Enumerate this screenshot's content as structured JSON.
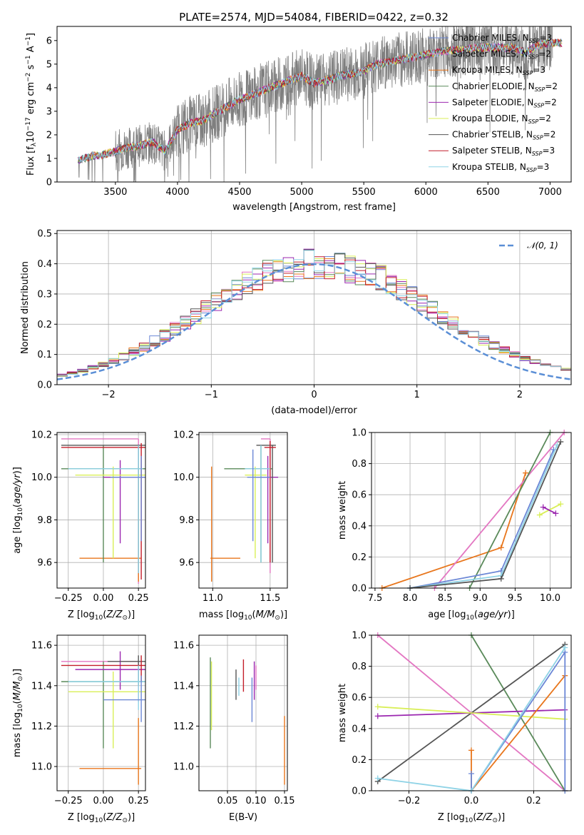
{
  "figure": {
    "title": "PLATE=2574, MJD=54084, FIBERID=0422, z=0.32"
  },
  "colors": {
    "Chabrier MILES": "#6b87d6",
    "Salpeter MILES": "#e377c2",
    "Kroupa MILES": "#e8761c",
    "Chabrier ELODIE": "#5a8a5a",
    "Salpeter ELODIE": "#9b27b0",
    "Kroupa ELODIE": "#d9ef58",
    "Chabrier STELIB": "#555555",
    "Salpeter STELIB": "#c41e2a",
    "Kroupa STELIB": "#8fd3e6",
    "gaussian": "#5b8fd6"
  },
  "chart_data": [
    {
      "id": "spectrum",
      "type": "line",
      "title": "PLATE=2574, MJD=54084, FIBERID=0422, z=0.32",
      "xlabel": "wavelength [Angstrom, rest frame]",
      "ylabel": "Flux [f_λ 10^-17 erg cm^-2 s^-1 A^-1]",
      "xlim": [
        3030,
        7170
      ],
      "ylim": [
        0,
        6.6
      ],
      "xticks": [
        3500,
        4000,
        4500,
        5000,
        5500,
        6000,
        6500,
        7000
      ],
      "yticks": [
        0,
        1,
        2,
        3,
        4,
        5,
        6
      ],
      "grid": false,
      "legend_position": "upper-right",
      "legend": [
        {
          "label": "Chabrier MILES, N_SSP=3",
          "main": "Chabrier MILES, N",
          "sub": "SSP",
          "tail": "=3",
          "color": "#6b87d6"
        },
        {
          "label": "Salpeter MILES, N_SSP=2",
          "main": "Salpeter MILES, N",
          "sub": "SSP",
          "tail": "=2",
          "color": "#e377c2"
        },
        {
          "label": "Kroupa MILES, N_SSP=3",
          "main": "Kroupa MILES, N",
          "sub": "SSP",
          "tail": "=3",
          "color": "#e8761c"
        },
        {
          "label": "Chabrier ELODIE, N_SSP=2",
          "main": "Chabrier ELODIE, N",
          "sub": "SSP",
          "tail": "=2",
          "color": "#5a8a5a"
        },
        {
          "label": "Salpeter ELODIE, N_SSP=2",
          "main": "Salpeter ELODIE, N",
          "sub": "SSP",
          "tail": "=2",
          "color": "#9b27b0"
        },
        {
          "label": "Kroupa ELODIE, N_SSP=2",
          "main": "Kroupa ELODIE, N",
          "sub": "SSP",
          "tail": "=2",
          "color": "#d9ef58"
        },
        {
          "label": "Chabrier STELIB, N_SSP=2",
          "main": "Chabrier STELIB, N",
          "sub": "SSP",
          "tail": "=2",
          "color": "#555555"
        },
        {
          "label": "Salpeter STELIB, N_SSP=3",
          "main": "Salpeter STELIB, N",
          "sub": "SSP",
          "tail": "=3",
          "color": "#c41e2a"
        },
        {
          "label": "Kroupa STELIB, N_SSP=3",
          "main": "Kroupa STELIB, N",
          "sub": "SSP",
          "tail": "=3",
          "color": "#8fd3e6"
        }
      ],
      "data_continuum": {
        "x": [
          3200,
          3300,
          3400,
          3500,
          3600,
          3700,
          3800,
          3900,
          4000,
          4100,
          4200,
          4300,
          4400,
          4500,
          4600,
          4700,
          4800,
          4900,
          5000,
          5100,
          5200,
          5300,
          5400,
          5500,
          5600,
          5700,
          5800,
          5900,
          6000,
          6100,
          6200,
          6300,
          6400,
          6500,
          6600,
          6700,
          6800,
          6900,
          7000,
          7100
        ],
        "y": [
          0.9,
          1.1,
          1.15,
          1.3,
          1.45,
          1.55,
          1.7,
          1.3,
          2.2,
          2.5,
          2.6,
          2.9,
          3.2,
          3.5,
          3.7,
          3.9,
          4.1,
          4.3,
          4.5,
          4.2,
          4.3,
          4.5,
          4.6,
          4.7,
          5.0,
          5.1,
          5.2,
          5.3,
          5.4,
          5.5,
          5.6,
          5.6,
          5.7,
          5.7,
          5.7,
          5.7,
          5.5,
          5.8,
          5.9,
          5.9
        ]
      }
    },
    {
      "id": "residuals",
      "type": "line",
      "xlabel": "(data-model)/error",
      "ylabel": "Normed distribution",
      "xlim": [
        -2.5,
        2.5
      ],
      "ylim": [
        0,
        0.51
      ],
      "xticks": [
        -2,
        -1,
        0,
        1,
        2
      ],
      "yticks": [
        0.0,
        0.1,
        0.2,
        0.3,
        0.4,
        0.5
      ],
      "grid": true,
      "legend_position": "upper-right",
      "legend": [
        {
          "label": "N(0, 1)",
          "math": "𝒩(0, 1)",
          "color": "#5b8fd6",
          "style": "dashed"
        }
      ],
      "bin_width": 0.1,
      "bin_start": -2.5
    },
    {
      "id": "age_vs_Z",
      "type": "scatter",
      "xlabel": "Z [log10(Z/Z⊙)]",
      "ylabel": "age [log10(age/yr)]",
      "xlim": [
        -0.33,
        0.3
      ],
      "ylim": [
        9.48,
        10.21
      ],
      "xticks": [
        -0.25,
        0.0,
        0.25
      ],
      "yticks": [
        9.6,
        9.8,
        10.0,
        10.2
      ],
      "grid": true,
      "crosses": [
        {
          "x": [
            -0.3,
            0.25
          ],
          "xv": 0.25,
          "y": [
            9.5,
            10.18
          ],
          "yv": 10.18,
          "color": "#e377c2"
        },
        {
          "x": [
            -0.17,
            0.27
          ],
          "xv": 0.25,
          "y": [
            9.51,
            10.05
          ],
          "yv": 9.62,
          "color": "#e8761c"
        },
        {
          "x": [
            -0.3,
            0.3
          ],
          "xv": 0.0,
          "y": [
            9.6,
            10.15
          ],
          "yv": 10.04,
          "color": "#5a8a5a"
        },
        {
          "x": [
            0.0,
            0.3
          ],
          "xv": 0.12,
          "y": [
            9.69,
            10.08
          ],
          "yv": 10.0,
          "color": "#9b27b0"
        },
        {
          "x": [
            -0.2,
            0.3
          ],
          "xv": 0.07,
          "y": [
            9.62,
            10.05
          ],
          "yv": 10.01,
          "color": "#d9ef58"
        },
        {
          "x": [
            -0.3,
            0.3
          ],
          "xv": 0.25,
          "y": [
            9.55,
            10.15
          ],
          "yv": 10.15,
          "color": "#555555"
        },
        {
          "x": [
            -0.3,
            0.3
          ],
          "xv": 0.27,
          "y": [
            9.52,
            10.16
          ],
          "yv": 10.14,
          "color": "#c41e2a"
        },
        {
          "x": [
            -0.25,
            0.28
          ],
          "xv": 0.25,
          "y": [
            9.55,
            10.15
          ],
          "yv": 10.04,
          "color": "#8fd3e6"
        },
        {
          "x": [
            0.05,
            0.3
          ],
          "xv": 0.27,
          "y": [
            9.7,
            10.1
          ],
          "yv": 10.0,
          "color": "#6b87d6"
        }
      ]
    },
    {
      "id": "age_vs_mass",
      "type": "scatter",
      "xlabel": "mass [log10(M/M⊙)]",
      "ylabel": "",
      "xlim": [
        10.88,
        11.65
      ],
      "ylim": [
        9.48,
        10.21
      ],
      "xticks": [
        11.0,
        11.5
      ],
      "yticks": [
        9.6,
        9.8,
        10.0,
        10.2
      ],
      "grid": true,
      "crosses": [
        {
          "x": [
            10.98,
            11.24
          ],
          "xv": 10.99,
          "y": [
            9.51,
            10.05
          ],
          "yv": 9.62,
          "color": "#e8761c"
        },
        {
          "x": [
            11.42,
            11.5
          ],
          "xv": 11.5,
          "y": [
            9.55,
            10.18
          ],
          "yv": 10.18,
          "color": "#e377c2"
        },
        {
          "x": [
            11.1,
            11.52
          ],
          "xv": 11.42,
          "y": [
            9.6,
            10.15
          ],
          "yv": 10.04,
          "color": "#5a8a5a"
        },
        {
          "x": [
            11.38,
            11.57
          ],
          "xv": 11.48,
          "y": [
            9.69,
            10.1
          ],
          "yv": 10.0,
          "color": "#9b27b0"
        },
        {
          "x": [
            11.28,
            11.47
          ],
          "xv": 11.37,
          "y": [
            9.62,
            10.05
          ],
          "yv": 10.01,
          "color": "#d9ef58"
        },
        {
          "x": [
            11.38,
            11.55
          ],
          "xv": 11.52,
          "y": [
            9.6,
            10.15
          ],
          "yv": 10.15,
          "color": "#555555"
        },
        {
          "x": [
            11.45,
            11.55
          ],
          "xv": 11.5,
          "y": [
            9.6,
            10.17
          ],
          "yv": 10.14,
          "color": "#c41e2a"
        },
        {
          "x": [
            11.28,
            11.5
          ],
          "xv": 11.42,
          "y": [
            9.6,
            10.15
          ],
          "yv": 10.04,
          "color": "#8fd3e6"
        },
        {
          "x": [
            11.3,
            11.5
          ],
          "xv": 11.35,
          "y": [
            9.7,
            10.13
          ],
          "yv": 10.0,
          "color": "#6b87d6"
        }
      ]
    },
    {
      "id": "massweight_vs_age",
      "type": "line",
      "xlabel": "age [log10(age/yr)]",
      "ylabel": "mass weight",
      "xlim": [
        7.45,
        10.3
      ],
      "ylim": [
        0,
        1
      ],
      "xticks": [
        7.5,
        8.0,
        8.5,
        9.0,
        9.5,
        10.0
      ],
      "yticks": [
        0.0,
        0.2,
        0.4,
        0.6,
        0.8,
        1.0
      ],
      "grid": true,
      "series": [
        {
          "color": "#e8761c",
          "x": [
            7.6,
            9.3,
            9.65
          ],
          "y": [
            0.0,
            0.26,
            0.74
          ]
        },
        {
          "color": "#e377c2",
          "x": [
            8.35,
            10.2
          ],
          "y": [
            0.0,
            1.0
          ]
        },
        {
          "color": "#5a8a5a",
          "x": [
            8.85,
            10.0
          ],
          "y": [
            0.0,
            1.0
          ]
        },
        {
          "color": "#6b87d6",
          "x": [
            8.0,
            9.3,
            10.05
          ],
          "y": [
            0.0,
            0.11,
            0.89
          ]
        },
        {
          "color": "#8fd3e6",
          "x": [
            8.0,
            9.3,
            10.1
          ],
          "y": [
            0.0,
            0.08,
            0.92
          ]
        },
        {
          "color": "#555555",
          "x": [
            8.0,
            9.3,
            10.15
          ],
          "y": [
            0.0,
            0.06,
            0.94
          ]
        },
        {
          "color": "#d9ef58",
          "x": [
            9.85,
            10.15
          ],
          "y": [
            0.47,
            0.54
          ]
        },
        {
          "color": "#9b27b0",
          "x": [
            9.9,
            10.08
          ],
          "y": [
            0.52,
            0.48
          ]
        }
      ]
    },
    {
      "id": "mass_vs_Z",
      "type": "scatter",
      "xlabel": "Z [log10(Z/Z⊙)]",
      "ylabel": "mass [log10(M/M⊙)]",
      "xlim": [
        -0.33,
        0.3
      ],
      "ylim": [
        10.88,
        11.65
      ],
      "xticks": [
        -0.25,
        0.0,
        0.25
      ],
      "yticks": [
        11.0,
        11.2,
        11.4,
        11.6
      ],
      "grid": true,
      "crosses": [
        {
          "x": [
            -0.17,
            0.27
          ],
          "xv": 0.25,
          "y": [
            10.91,
            11.24
          ],
          "yv": 10.99,
          "color": "#e8761c"
        },
        {
          "x": [
            -0.3,
            0.25
          ],
          "xv": 0.25,
          "y": [
            11.32,
            11.52
          ],
          "yv": 11.52,
          "color": "#e377c2"
        },
        {
          "x": [
            -0.3,
            0.3
          ],
          "xv": 0.0,
          "y": [
            11.09,
            11.52
          ],
          "yv": 11.42,
          "color": "#5a8a5a"
        },
        {
          "x": [
            -0.2,
            0.3
          ],
          "xv": 0.12,
          "y": [
            11.38,
            11.57
          ],
          "yv": 11.48,
          "color": "#9b27b0"
        },
        {
          "x": [
            -0.25,
            0.3
          ],
          "xv": 0.07,
          "y": [
            11.09,
            11.47
          ],
          "yv": 11.37,
          "color": "#d9ef58"
        },
        {
          "x": [
            0.03,
            0.3
          ],
          "xv": 0.25,
          "y": [
            11.4,
            11.55
          ],
          "yv": 11.52,
          "color": "#555555"
        },
        {
          "x": [
            -0.3,
            0.3
          ],
          "xv": 0.27,
          "y": [
            11.42,
            11.55
          ],
          "yv": 11.5,
          "color": "#c41e2a"
        },
        {
          "x": [
            -0.25,
            0.3
          ],
          "xv": 0.25,
          "y": [
            11.28,
            11.5
          ],
          "yv": 11.42,
          "color": "#8fd3e6"
        },
        {
          "x": [
            0.0,
            0.3
          ],
          "xv": 0.27,
          "y": [
            11.22,
            11.45
          ],
          "yv": 11.33,
          "color": "#6b87d6"
        }
      ]
    },
    {
      "id": "mass_vs_ebv",
      "type": "scatter",
      "xlabel": "E(B-V)",
      "ylabel": "",
      "xlim": [
        0.0,
        0.155
      ],
      "ylim": [
        10.88,
        11.65
      ],
      "xticks": [
        0.05,
        0.1,
        0.15
      ],
      "yticks": [
        11.0,
        11.2,
        11.4,
        11.6
      ],
      "grid": true,
      "vlines": [
        {
          "x": 0.02,
          "y": [
            11.09,
            11.54
          ],
          "color": "#5a8a5a"
        },
        {
          "x": 0.022,
          "y": [
            11.18,
            11.52
          ],
          "color": "#d9ef58"
        },
        {
          "x": 0.065,
          "y": [
            11.33,
            11.48
          ],
          "color": "#555555"
        },
        {
          "x": 0.07,
          "y": [
            11.35,
            11.44
          ],
          "color": "#8fd3e6"
        },
        {
          "x": 0.078,
          "y": [
            11.37,
            11.53
          ],
          "color": "#c41e2a"
        },
        {
          "x": 0.093,
          "y": [
            11.22,
            11.44
          ],
          "color": "#6b87d6"
        },
        {
          "x": 0.097,
          "y": [
            11.33,
            11.52
          ],
          "color": "#9b27b0"
        },
        {
          "x": 0.1,
          "y": [
            11.38,
            11.5
          ],
          "color": "#e377c2"
        },
        {
          "x": 0.15,
          "y": [
            10.91,
            11.25
          ],
          "color": "#e8761c"
        }
      ]
    },
    {
      "id": "massweight_vs_Z",
      "type": "line",
      "xlabel": "Z [log10(Z/Z⊙)]",
      "ylabel": "mass weight",
      "xlim": [
        -0.32,
        0.32
      ],
      "ylim": [
        0,
        1
      ],
      "xticks": [
        -0.2,
        0.0,
        0.2
      ],
      "yticks": [
        0.0,
        0.2,
        0.4,
        0.6,
        0.8,
        1.0
      ],
      "grid": true,
      "series": [
        {
          "color": "#e377c2",
          "x": [
            -0.3,
            0.3
          ],
          "y": [
            1.0,
            0.0
          ]
        },
        {
          "color": "#5a8a5a",
          "x": [
            0.0,
            0.3
          ],
          "y": [
            1.0,
            0.0
          ]
        },
        {
          "color": "#555555",
          "x": [
            -0.3,
            0.3
          ],
          "y": [
            0.06,
            0.94
          ]
        },
        {
          "color": "#9b27b0",
          "x": [
            -0.3,
            0.3
          ],
          "y": [
            0.48,
            0.52
          ]
        },
        {
          "color": "#d9ef58",
          "x": [
            -0.3,
            0.3
          ],
          "y": [
            0.54,
            0.46
          ]
        },
        {
          "color": "#e8761c",
          "x": [
            0.0,
            0.0,
            0.3
          ],
          "y": [
            0.26,
            0.0,
            0.74
          ]
        },
        {
          "color": "#6b87d6",
          "x": [
            0.0,
            0.0,
            0.3,
            0.3
          ],
          "y": [
            0.11,
            0.0,
            0.89,
            0.0
          ]
        },
        {
          "color": "#8fd3e6",
          "x": [
            -0.3,
            0.0,
            0.3
          ],
          "y": [
            0.08,
            0.0,
            0.92
          ]
        }
      ]
    }
  ]
}
